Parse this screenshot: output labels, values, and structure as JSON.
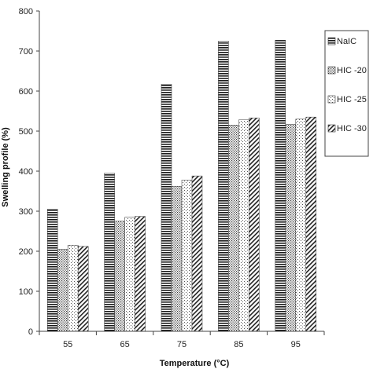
{
  "chart_data": {
    "type": "bar",
    "title": "",
    "xlabel": "Temperature (°C)",
    "ylabel": "Swelling profile (%)",
    "ylim": [
      0,
      800
    ],
    "yticks": [
      0,
      100,
      200,
      300,
      400,
      500,
      600,
      700,
      800
    ],
    "grid": false,
    "legend_position": "right",
    "categories": [
      "55",
      "65",
      "75",
      "85",
      "95"
    ],
    "series": [
      {
        "name": "NaIC",
        "pattern": "horizontal-lines",
        "values": [
          305,
          395,
          617,
          725,
          727
        ]
      },
      {
        "name": "HIC -20",
        "pattern": "dots",
        "values": [
          205,
          275,
          362,
          515,
          517
        ]
      },
      {
        "name": "HIC -25",
        "pattern": "light-dots",
        "values": [
          215,
          285,
          378,
          528,
          530
        ]
      },
      {
        "name": "HIC -30",
        "pattern": "diagonal-lines",
        "values": [
          212,
          287,
          388,
          533,
          535
        ]
      }
    ]
  }
}
